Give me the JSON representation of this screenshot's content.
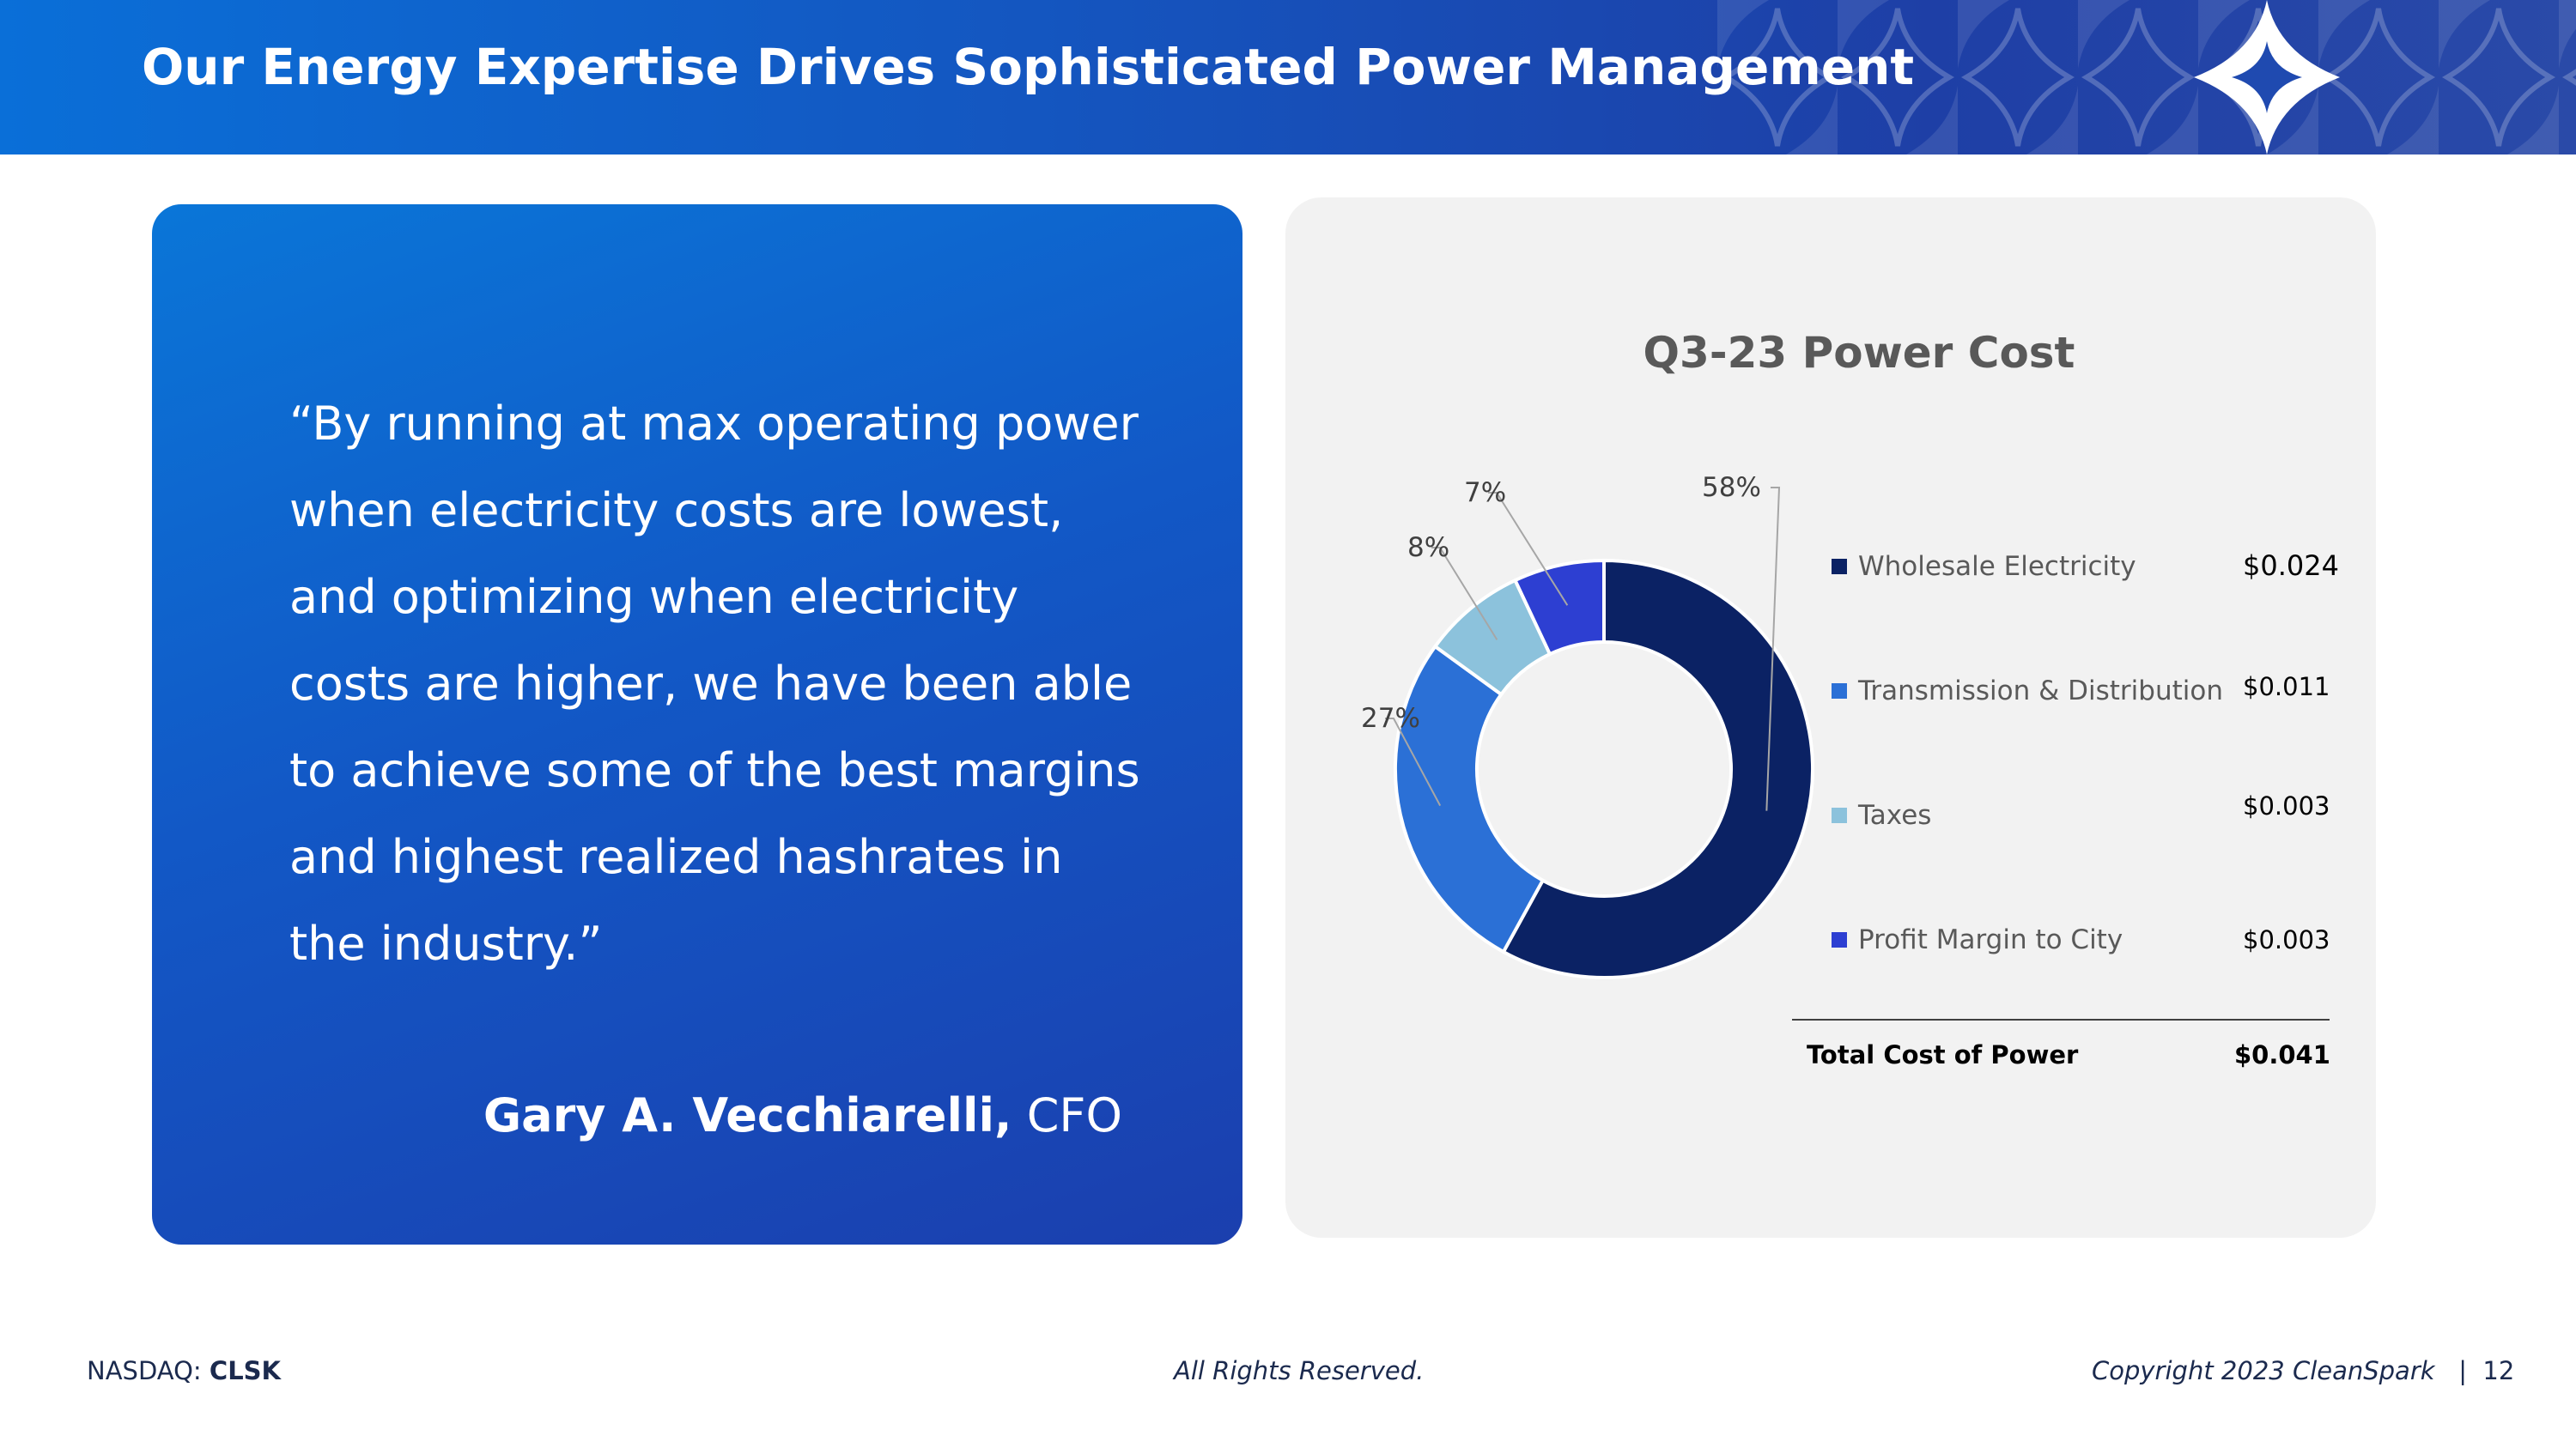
{
  "header": {
    "title": "Our Energy Expertise Drives Sophisticated Power Management",
    "logo_icon": "cleanspark-star-icon"
  },
  "quote": {
    "text": "“By running at max operating power when electricity costs are lowest, and optimizing when electricity costs are higher, we have been able to achieve some of the best margins and highest realized hashrates in the industry.”",
    "author_name": "Gary A. Vecchiarelli,",
    "author_title": "CFO"
  },
  "chart_data": {
    "type": "pie",
    "variant": "donut",
    "title": "Q3-23 Power Cost",
    "categories": [
      "Wholesale Electricity",
      "Transmission & Distribution",
      "Taxes",
      "Profit Margin to City"
    ],
    "values": [
      58,
      27,
      8,
      7
    ],
    "data_labels": [
      "58%",
      "27%",
      "8%",
      "7%"
    ],
    "colors": [
      "#0b2264",
      "#2b70d6",
      "#8cc2dc",
      "#2d3fd2"
    ],
    "costs": [
      "$0.024",
      "$0.011",
      "$0.003",
      "$0.003"
    ],
    "total_label": "Total Cost of Power",
    "total_value": "$0.041",
    "legend": "right"
  },
  "footer": {
    "exchange": "NASDAQ:",
    "ticker": "CLSK",
    "rights": "All Rights Reserved.",
    "copyright": "Copyright 2023 CleanSpark",
    "separator": "|",
    "page_number": "12"
  }
}
